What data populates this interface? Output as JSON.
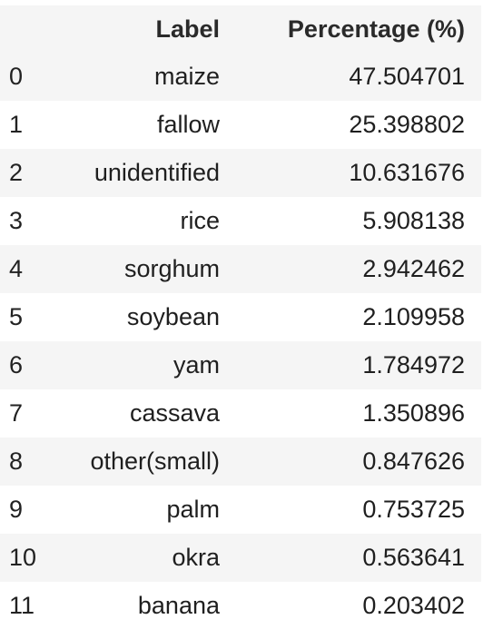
{
  "table": {
    "headers": {
      "index": "",
      "label": "Label",
      "percentage": "Percentage (%)"
    },
    "rows": [
      {
        "index": "0",
        "label": "maize",
        "percentage": "47.504701"
      },
      {
        "index": "1",
        "label": "fallow",
        "percentage": "25.398802"
      },
      {
        "index": "2",
        "label": "unidentified",
        "percentage": "10.631676"
      },
      {
        "index": "3",
        "label": "rice",
        "percentage": "5.908138"
      },
      {
        "index": "4",
        "label": "sorghum",
        "percentage": "2.942462"
      },
      {
        "index": "5",
        "label": "soybean",
        "percentage": "2.109958"
      },
      {
        "index": "6",
        "label": "yam",
        "percentage": "1.784972"
      },
      {
        "index": "7",
        "label": "cassava",
        "percentage": "1.350896"
      },
      {
        "index": "8",
        "label": "other(small)",
        "percentage": "0.847626"
      },
      {
        "index": "9",
        "label": "palm",
        "percentage": "0.753725"
      },
      {
        "index": "10",
        "label": "okra",
        "percentage": "0.563641"
      },
      {
        "index": "11",
        "label": "banana",
        "percentage": "0.203402"
      }
    ]
  }
}
